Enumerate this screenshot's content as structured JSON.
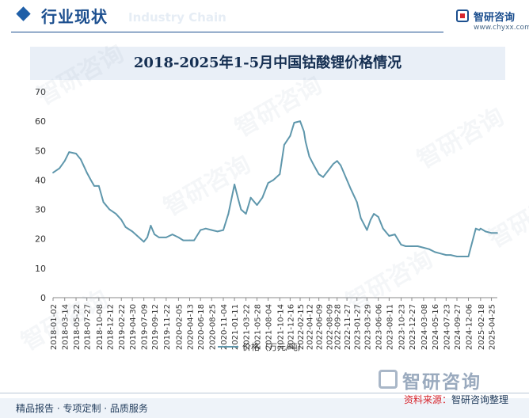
{
  "header": {
    "title": "行业现状",
    "ghost_text": "Industry Chain",
    "brand_name": "智研咨询",
    "brand_url": "www.chyxx.com"
  },
  "footer": {
    "left_text": "精品报告 · 专项定制 · 品质服务",
    "brand": "智研咨询",
    "source_label": "资料来源：",
    "source_value": "智研咨询整理"
  },
  "watermark": "智研咨询",
  "colors": {
    "line": "#5f97ac",
    "accent": "#1c4f8f",
    "title_band": "#e9eff7"
  },
  "chart_data": {
    "type": "line",
    "title": "2018-2025年1-5月中国钴酸锂价格情况",
    "xlabel": "",
    "ylabel": "",
    "ylim": [
      0,
      70
    ],
    "yticks": [
      0,
      10,
      20,
      30,
      40,
      50,
      60,
      70
    ],
    "grid": false,
    "legend_position": "bottom-center",
    "x_ticks": [
      "2018-01-02",
      "2018-03-14",
      "2018-05-22",
      "2018-07-27",
      "2018-10-08",
      "2018-12-12",
      "2019-02-22",
      "2019-04-30",
      "2019-07-09",
      "2019-09-12",
      "2019-11-22",
      "2020-02-05",
      "2020-04-13",
      "2020-06-18",
      "2020-08-25",
      "2020-11-04",
      "2021-01-11",
      "2021-03-22",
      "2021-05-28",
      "2021-08-04",
      "2021-10-14",
      "2021-12-16",
      "2022-02-15",
      "2022-04-12",
      "2022-06-09",
      "2022-08-09",
      "2022-09-28",
      "2022-11-27",
      "2023-01-27",
      "2023-03-29",
      "2023-06-06",
      "2023-08-11",
      "2023-10-23",
      "2023-12-27",
      "2024-03-08",
      "2024-05-16",
      "2024-07-23",
      "2024-09-27",
      "2024-12-06",
      "2025-02-18",
      "2025-04-25"
    ],
    "series": [
      {
        "name": "价格（万元/吨）",
        "x": [
          "2018-01-02",
          "2018-02-10",
          "2018-03-14",
          "2018-04-10",
          "2018-05-22",
          "2018-06-20",
          "2018-07-27",
          "2018-08-20",
          "2018-09-10",
          "2018-10-08",
          "2018-11-05",
          "2018-12-12",
          "2019-01-20",
          "2019-02-22",
          "2019-03-20",
          "2019-04-30",
          "2019-05-30",
          "2019-07-09",
          "2019-07-30",
          "2019-08-20",
          "2019-09-12",
          "2019-10-10",
          "2019-11-22",
          "2019-12-30",
          "2020-02-05",
          "2020-03-05",
          "2020-04-13",
          "2020-05-10",
          "2020-06-18",
          "2020-07-20",
          "2020-08-25",
          "2020-09-30",
          "2020-11-04",
          "2020-12-05",
          "2021-01-11",
          "2021-02-05",
          "2021-02-20",
          "2021-03-22",
          "2021-04-20",
          "2021-05-28",
          "2021-06-30",
          "2021-08-04",
          "2021-09-05",
          "2021-10-14",
          "2021-11-10",
          "2021-12-16",
          "2022-01-10",
          "2022-02-15",
          "2022-03-10",
          "2022-03-20",
          "2022-04-12",
          "2022-05-10",
          "2022-06-09",
          "2022-07-05",
          "2022-08-09",
          "2022-09-05",
          "2022-09-28",
          "2022-10-20",
          "2022-11-27",
          "2022-12-20",
          "2023-01-27",
          "2023-02-20",
          "2023-03-29",
          "2023-04-20",
          "2023-05-10",
          "2023-06-06",
          "2023-07-05",
          "2023-08-11",
          "2023-09-15",
          "2023-10-23",
          "2023-11-20",
          "2023-12-27",
          "2024-02-01",
          "2024-03-08",
          "2024-04-10",
          "2024-05-16",
          "2024-06-20",
          "2024-07-23",
          "2024-08-20",
          "2024-09-27",
          "2024-10-20",
          "2024-12-06",
          "2025-01-20",
          "2025-02-10",
          "2025-02-18",
          "2025-03-20",
          "2025-04-25",
          "2025-05-31"
        ],
        "values": [
          42.5,
          44,
          46.5,
          49.5,
          49,
          47,
          42.5,
          40,
          38,
          38,
          32.5,
          30,
          28.5,
          26.5,
          24,
          22.5,
          21,
          19,
          20.5,
          24.5,
          21.5,
          20.5,
          20.5,
          21.5,
          20.5,
          19.5,
          19.5,
          19.5,
          23,
          23.5,
          23,
          22.5,
          23,
          28.5,
          38.5,
          33,
          30,
          28.5,
          34,
          31.5,
          34,
          39,
          40,
          42,
          52,
          55,
          59.5,
          60,
          56.5,
          53,
          48,
          45,
          42,
          41,
          43.5,
          45.5,
          46.5,
          45,
          40,
          37,
          32.5,
          27,
          23,
          26.5,
          28.5,
          27.5,
          23.5,
          21,
          21.5,
          18,
          17.5,
          17.5,
          17.5,
          17,
          16.5,
          15.5,
          15,
          14.5,
          14.5,
          14,
          14,
          14,
          23.5,
          23,
          23.5,
          22.5,
          22,
          22
        ]
      }
    ]
  }
}
